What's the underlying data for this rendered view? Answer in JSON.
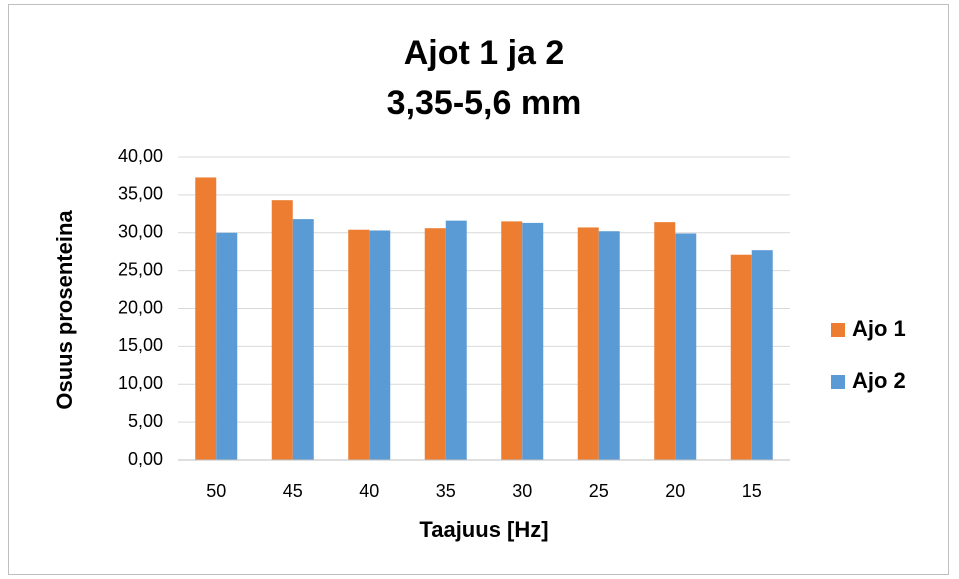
{
  "chart_data": {
    "type": "bar",
    "title": "Ajot 1 ja 2",
    "subtitle": "3,35-5,6 mm",
    "x_label": "Taajuus [Hz]",
    "y_label": "Osuus prosenteina",
    "categories": [
      "50",
      "45",
      "40",
      "35",
      "30",
      "25",
      "20",
      "15"
    ],
    "series": [
      {
        "name": "Ajo 1",
        "color": "#ed7d31",
        "values": [
          37.3,
          34.3,
          30.4,
          30.6,
          31.5,
          30.7,
          31.4,
          27.1
        ]
      },
      {
        "name": "Ajo 2",
        "color": "#5b9bd5",
        "values": [
          30.0,
          31.8,
          30.3,
          31.6,
          31.3,
          30.2,
          29.9,
          27.7
        ]
      }
    ],
    "ylim": [
      0,
      40
    ],
    "yticks": [
      {
        "value": 0,
        "label": "0,00"
      },
      {
        "value": 5,
        "label": "5,00"
      },
      {
        "value": 10,
        "label": "10,00"
      },
      {
        "value": 15,
        "label": "15,00"
      },
      {
        "value": 20,
        "label": "20,00"
      },
      {
        "value": 25,
        "label": "25,00"
      },
      {
        "value": 30,
        "label": "30,00"
      },
      {
        "value": 35,
        "label": "35,00"
      },
      {
        "value": 40,
        "label": "40,00"
      }
    ],
    "grid": true,
    "legend": "right"
  }
}
